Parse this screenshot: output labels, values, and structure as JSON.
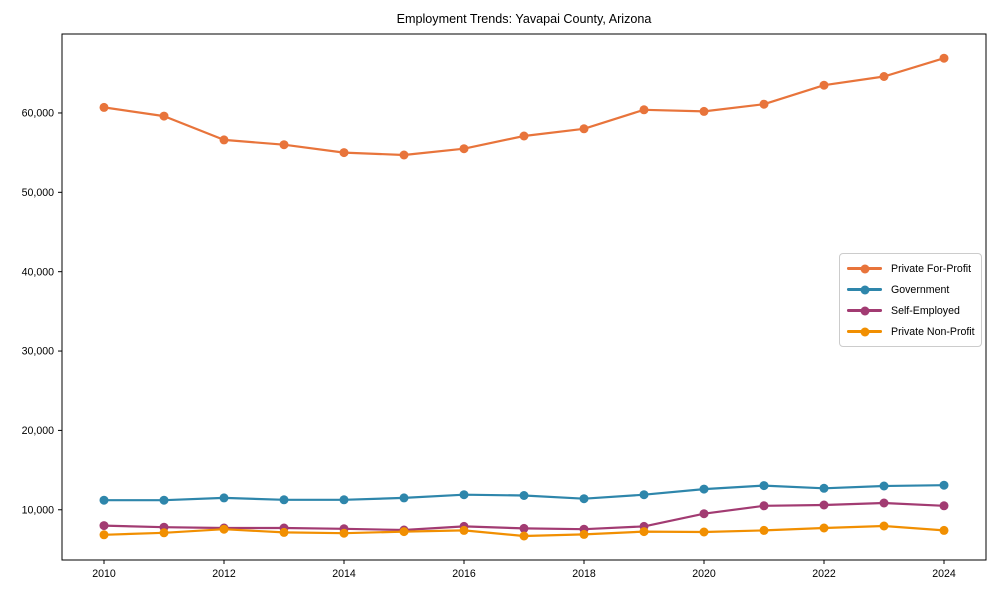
{
  "chart_data": {
    "type": "line",
    "title": "Employment Trends: Yavapai County, Arizona",
    "xlabel": "",
    "ylabel": "",
    "x": [
      2010,
      2011,
      2012,
      2013,
      2014,
      2015,
      2016,
      2017,
      2018,
      2019,
      2020,
      2021,
      2022,
      2023,
      2024
    ],
    "series": [
      {
        "name": "Private For-Profit",
        "color": "#E8743B",
        "values": [
          60700,
          59600,
          56600,
          56000,
          55000,
          54700,
          55500,
          57100,
          58000,
          60400,
          60200,
          61100,
          63500,
          64600,
          66900
        ]
      },
      {
        "name": "Government",
        "color": "#2E86AB",
        "values": [
          11200,
          11200,
          11500,
          11250,
          11250,
          11500,
          11900,
          11800,
          11400,
          11900,
          12600,
          13050,
          12700,
          13000,
          13100
        ]
      },
      {
        "name": "Self-Employed",
        "color": "#A23B72",
        "values": [
          8000,
          7800,
          7700,
          7700,
          7600,
          7450,
          7900,
          7650,
          7550,
          7900,
          9500,
          10500,
          10600,
          10850,
          10500
        ]
      },
      {
        "name": "Private Non-Profit",
        "color": "#F18F01",
        "values": [
          6850,
          7100,
          7550,
          7150,
          7050,
          7250,
          7400,
          6700,
          6900,
          7250,
          7200,
          7400,
          7700,
          7950,
          7400
        ]
      }
    ],
    "xlim": [
      2009.3,
      2024.7
    ],
    "ylim": [
      3670,
      69950
    ],
    "x_ticks": [
      2010,
      2012,
      2014,
      2016,
      2018,
      2020,
      2022,
      2024
    ],
    "x_tick_labels": [
      "2010",
      "2012",
      "2014",
      "2016",
      "2018",
      "2020",
      "2022",
      "2024"
    ],
    "y_ticks": [
      10000,
      20000,
      30000,
      40000,
      50000,
      60000
    ],
    "y_tick_labels": [
      "10,000",
      "20,000",
      "30,000",
      "40,000",
      "50,000",
      "60,000"
    ],
    "grid": false,
    "legend_position": "center right",
    "axis_color": "#000000",
    "background_color": "#ffffff"
  }
}
